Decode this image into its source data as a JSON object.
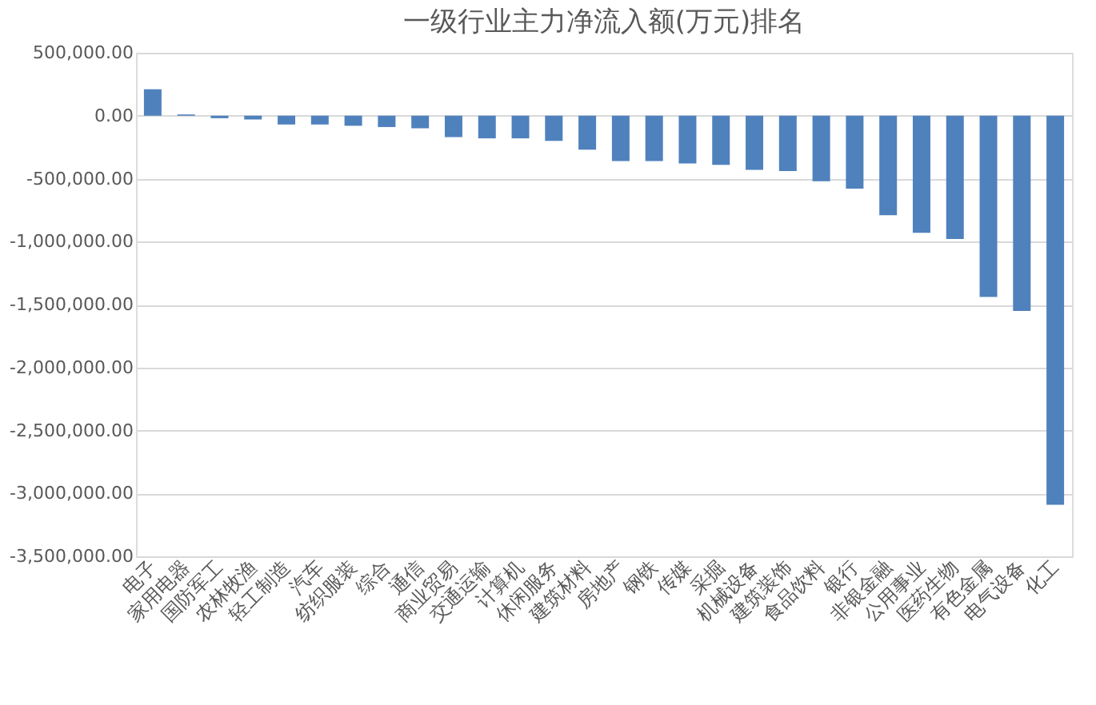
{
  "chart_data": {
    "type": "bar",
    "title": "一级行业主力净流入额(万元)排名",
    "categories": [
      "电子",
      "家用电器",
      "国防军工",
      "农林牧渔",
      "轻工制造",
      "汽车",
      "纺织服装",
      "综合",
      "通信",
      "商业贸易",
      "交通运输",
      "计算机",
      "休闲服务",
      "建筑材料",
      "房地产",
      "钢铁",
      "传媒",
      "采掘",
      "机械设备",
      "建筑装饰",
      "食品饮料",
      "银行",
      "非银金融",
      "公用事业",
      "医药生物",
      "有色金属",
      "电气设备",
      "化工"
    ],
    "series": [
      {
        "color": "#4f81bd",
        "values": [
          210000,
          10000,
          -20000,
          -30000,
          -70000,
          -70000,
          -80000,
          -90000,
          -100000,
          -170000,
          -180000,
          -180000,
          -200000,
          -270000,
          -360000,
          -360000,
          -380000,
          -390000,
          -430000,
          -440000,
          -520000,
          -580000,
          -790000,
          -930000,
          -980000,
          -1440000,
          -1550000,
          -3090000
        ]
      }
    ],
    "ylim": [
      -3500000,
      500000
    ],
    "yticks": [
      {
        "value": 500000,
        "label": "500,000.00"
      },
      {
        "value": 0,
        "label": "0.00"
      },
      {
        "value": -500000,
        "label": "-500,000.00"
      },
      {
        "value": -1000000,
        "label": "-1,000,000.00"
      },
      {
        "value": -1500000,
        "label": "-1,500,000.00"
      },
      {
        "value": -2000000,
        "label": "-2,000,000.00"
      },
      {
        "value": -2500000,
        "label": "-2,500,000.00"
      },
      {
        "value": -3000000,
        "label": "-3,000,000.00"
      },
      {
        "value": -3500000,
        "label": "-3,500,000.00"
      }
    ],
    "grid": "y"
  }
}
